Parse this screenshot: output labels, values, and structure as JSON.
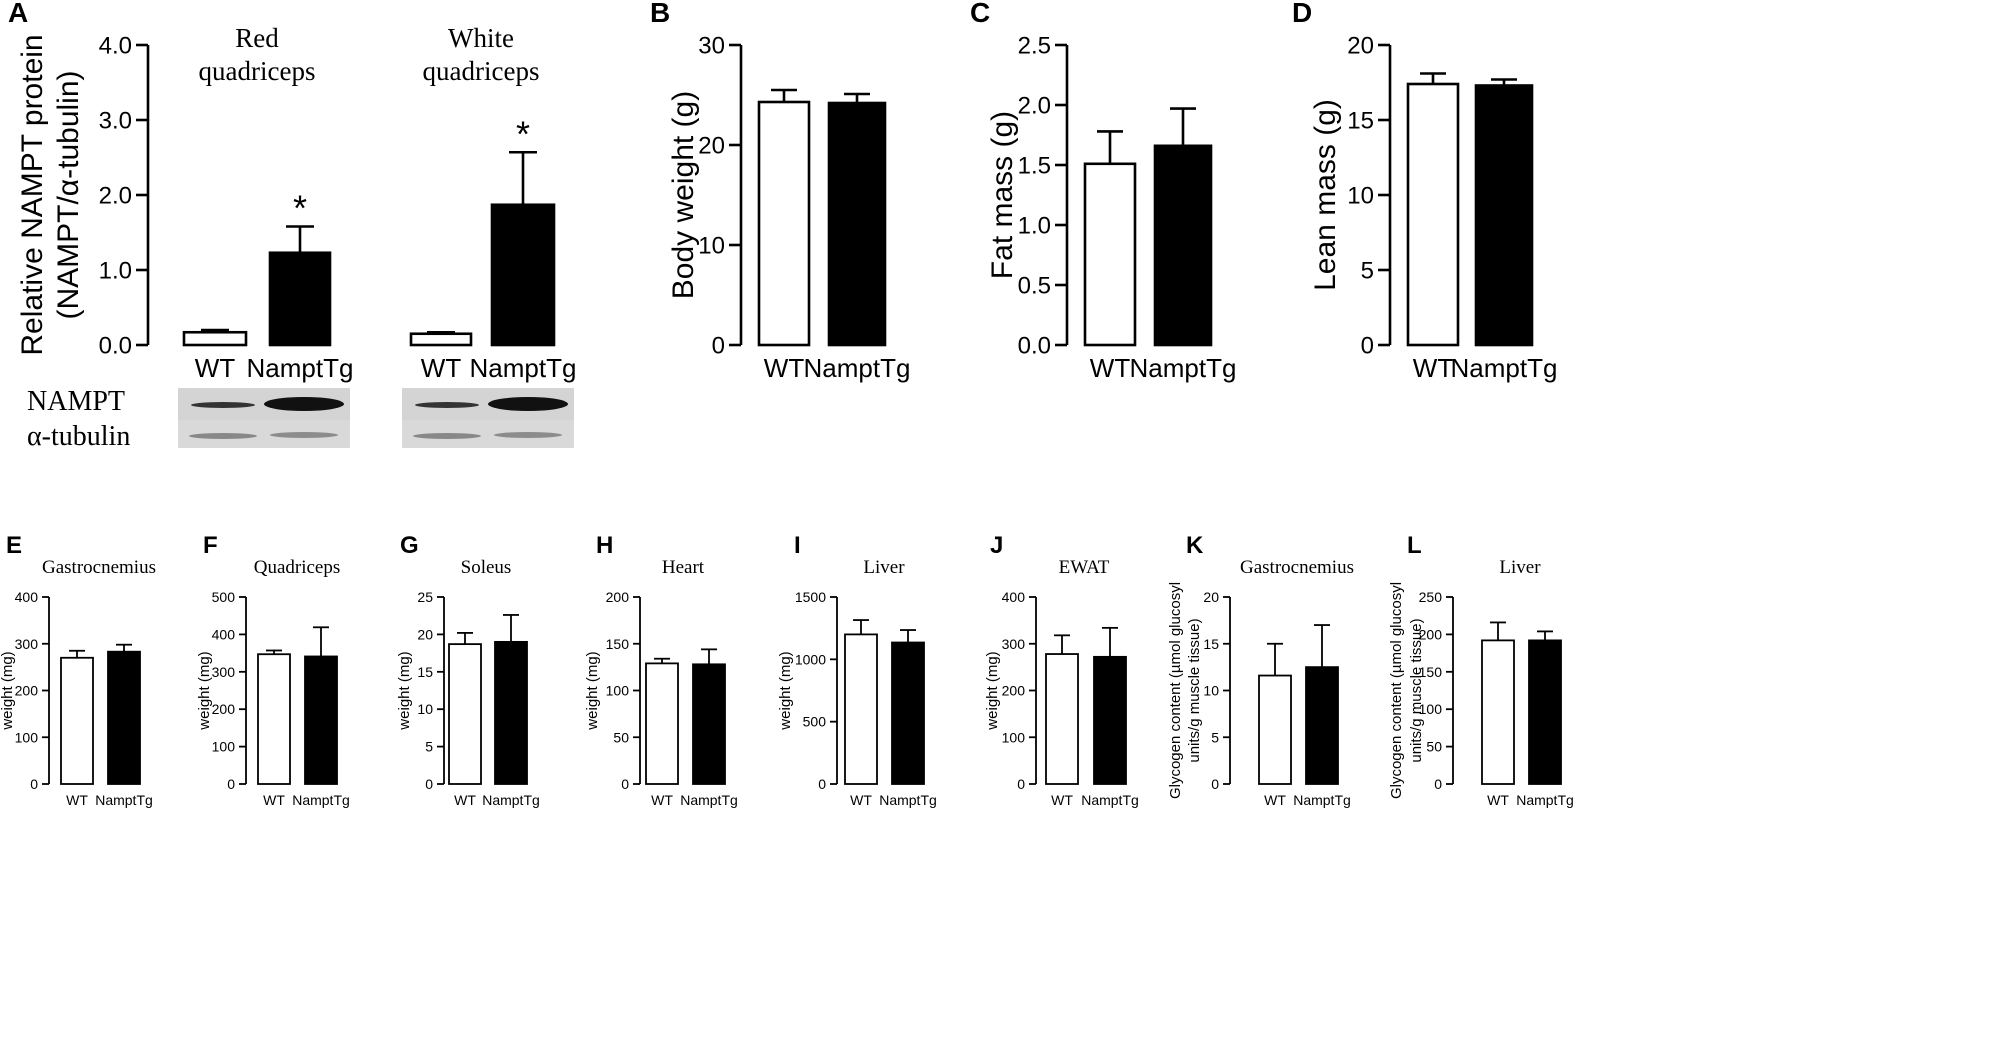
{
  "chart_data": [
    {
      "panel": "A",
      "type": "bar",
      "ylabel_lines": [
        "Relative NAMPT protein",
        "(NAMPT/α-tubulin)"
      ],
      "yticks": [
        "0.0",
        "1.0",
        "2.0",
        "3.0",
        "4.0"
      ],
      "ylim": [
        0,
        4
      ],
      "groups": [
        {
          "title_lines": [
            "Red",
            "quadriceps"
          ],
          "categories": [
            "WT",
            "NamptTg"
          ],
          "values": [
            0.17,
            1.23
          ],
          "errors": [
            0.03,
            0.35
          ],
          "annotations": [
            "",
            "*"
          ]
        },
        {
          "title_lines": [
            "White",
            "quadriceps"
          ],
          "categories": [
            "WT",
            "NamptTg"
          ],
          "values": [
            0.15,
            1.87
          ],
          "errors": [
            0.02,
            0.7
          ],
          "annotations": [
            "",
            "*"
          ]
        }
      ],
      "blot_labels": [
        "NAMPT",
        "α-tubulin"
      ]
    },
    {
      "panel": "B",
      "type": "bar",
      "ylabel": "Body weight (g)",
      "categories": [
        "WT",
        "NamptTg"
      ],
      "values": [
        24.3,
        24.2
      ],
      "errors": [
        1.2,
        0.9
      ],
      "yticks": [
        "0",
        "10",
        "20",
        "30"
      ],
      "ylim": [
        0,
        30
      ]
    },
    {
      "panel": "C",
      "type": "bar",
      "ylabel": "Fat mass (g)",
      "categories": [
        "WT",
        "NamptTg"
      ],
      "values": [
        1.51,
        1.66
      ],
      "errors": [
        0.27,
        0.31
      ],
      "yticks": [
        "0.0",
        "0.5",
        "1.0",
        "1.5",
        "2.0",
        "2.5"
      ],
      "ylim": [
        0,
        2.5
      ]
    },
    {
      "panel": "D",
      "type": "bar",
      "ylabel": "Lean mass (g)",
      "categories": [
        "WT",
        "NamptTg"
      ],
      "values": [
        17.4,
        17.3
      ],
      "errors": [
        0.7,
        0.4
      ],
      "yticks": [
        "0",
        "5",
        "10",
        "15",
        "20"
      ],
      "ylim": [
        0,
        20
      ]
    },
    {
      "panel": "E",
      "type": "bar",
      "title": "Gastrocnemius",
      "ylabel": "weight (mg)",
      "categories": [
        "WT",
        "NamptTg"
      ],
      "values": [
        270,
        283
      ],
      "errors": [
        15,
        15
      ],
      "yticks": [
        "0",
        "100",
        "200",
        "300",
        "400"
      ],
      "ylim": [
        0,
        400
      ]
    },
    {
      "panel": "F",
      "type": "bar",
      "title": "Quadriceps",
      "ylabel": "weight (mg)",
      "categories": [
        "WT",
        "NamptTg"
      ],
      "values": [
        347,
        341
      ],
      "errors": [
        10,
        78
      ],
      "yticks": [
        "0",
        "100",
        "200",
        "300",
        "400",
        "500"
      ],
      "ylim": [
        0,
        500
      ]
    },
    {
      "panel": "G",
      "type": "bar",
      "title": "Soleus",
      "ylabel": "weight (mg)",
      "categories": [
        "WT",
        "NamptTg"
      ],
      "values": [
        18.7,
        19.0
      ],
      "errors": [
        1.5,
        3.6
      ],
      "yticks": [
        "0",
        "5",
        "10",
        "15",
        "20",
        "25"
      ],
      "ylim": [
        0,
        25
      ]
    },
    {
      "panel": "H",
      "type": "bar",
      "title": "Heart",
      "ylabel": "weight (mg)",
      "categories": [
        "WT",
        "NamptTg"
      ],
      "values": [
        129,
        128
      ],
      "errors": [
        5,
        16
      ],
      "yticks": [
        "0",
        "50",
        "100",
        "150",
        "200"
      ],
      "ylim": [
        0,
        200
      ]
    },
    {
      "panel": "I",
      "type": "bar",
      "title": "Liver",
      "ylabel": "weight (mg)",
      "categories": [
        "WT",
        "NamptTg"
      ],
      "values": [
        1200,
        1135
      ],
      "errors": [
        115,
        100
      ],
      "yticks": [
        "0",
        "500",
        "1000",
        "1500"
      ],
      "ylim": [
        0,
        1500
      ]
    },
    {
      "panel": "J",
      "type": "bar",
      "title": "EWAT",
      "ylabel": "weight (mg)",
      "categories": [
        "WT",
        "NamptTg"
      ],
      "values": [
        278,
        272
      ],
      "errors": [
        40,
        62
      ],
      "yticks": [
        "0",
        "100",
        "200",
        "300",
        "400"
      ],
      "ylim": [
        0,
        400
      ]
    },
    {
      "panel": "K",
      "type": "bar",
      "title": "Gastrocnemius",
      "ylabel_lines": [
        "Glycogen content (µmol glucosyl",
        "units/g muscle tissue)"
      ],
      "categories": [
        "WT",
        "NamptTg"
      ],
      "values": [
        11.6,
        12.5
      ],
      "errors": [
        3.4,
        4.5
      ],
      "yticks": [
        "0",
        "5",
        "10",
        "15",
        "20"
      ],
      "ylim": [
        0,
        20
      ]
    },
    {
      "panel": "L",
      "type": "bar",
      "title": "Liver",
      "ylabel_lines": [
        "Glycogen content (µmol glucosyl",
        "units/g muscle tissue)"
      ],
      "categories": [
        "WT",
        "NamptTg"
      ],
      "values": [
        192,
        192
      ],
      "errors": [
        24,
        12
      ],
      "yticks": [
        "0",
        "50",
        "100",
        "150",
        "200",
        "250"
      ],
      "ylim": [
        0,
        250
      ]
    }
  ]
}
